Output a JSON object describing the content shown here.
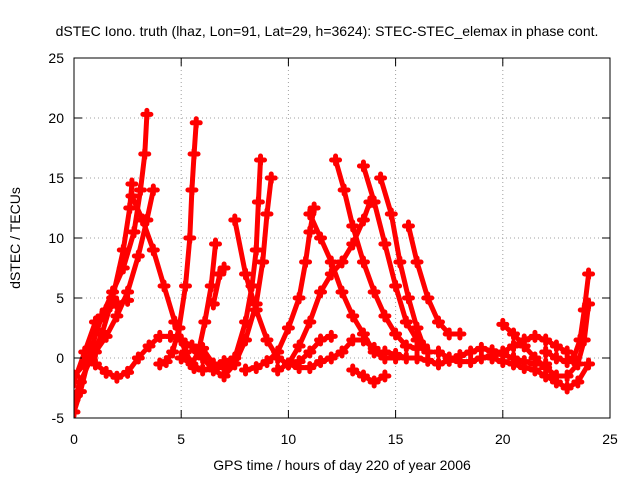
{
  "chart_data": {
    "type": "scatter",
    "title": "dSTEC Iono. truth (lhaz, Lon=91, Lat=29, h=3624): STEC-STEC_elemax in phase cont.",
    "xlabel": "GPS time / hours of day 220 of year 2006",
    "ylabel": "dSTEC  / TECUs",
    "xlim": [
      0,
      25
    ],
    "ylim": [
      -5,
      25
    ],
    "xticks": [
      0,
      5,
      10,
      15,
      20,
      25
    ],
    "yticks": [
      -5,
      0,
      5,
      10,
      15,
      20,
      25
    ],
    "grid": true,
    "marker": "+",
    "color": "#ff0000",
    "series": [
      {
        "points": [
          [
            0.0,
            -3.5
          ],
          [
            0.3,
            -2.0
          ],
          [
            0.8,
            0.0
          ],
          [
            1.3,
            2.0
          ],
          [
            1.8,
            5.0
          ],
          [
            2.3,
            9.0
          ],
          [
            2.6,
            12.5
          ],
          [
            2.7,
            14.5
          ]
        ]
      },
      {
        "points": [
          [
            0.0,
            -4.5
          ],
          [
            0.3,
            -2.8
          ],
          [
            0.8,
            0.8
          ],
          [
            1.3,
            3.5
          ],
          [
            1.8,
            5.5
          ],
          [
            2.3,
            7.5
          ],
          [
            2.8,
            10.5
          ],
          [
            3.1,
            14.0
          ],
          [
            3.3,
            17.0
          ],
          [
            3.4,
            20.3
          ]
        ]
      },
      {
        "points": [
          [
            0.0,
            -1.5
          ],
          [
            0.5,
            -0.5
          ],
          [
            1.0,
            0.5
          ],
          [
            1.5,
            1.8
          ],
          [
            2.0,
            3.5
          ],
          [
            2.5,
            5.5
          ],
          [
            3.0,
            8.5
          ],
          [
            3.4,
            11.5
          ],
          [
            3.7,
            14.0
          ]
        ]
      },
      {
        "points": [
          [
            0.0,
            -2.0
          ],
          [
            0.5,
            0.5
          ],
          [
            1.0,
            3.0
          ],
          [
            1.5,
            4.0
          ],
          [
            2.0,
            4.5
          ],
          [
            2.5,
            4.8
          ]
        ]
      },
      {
        "points": [
          [
            2.7,
            13.5
          ],
          [
            3.2,
            11.5
          ],
          [
            3.7,
            9.0
          ],
          [
            4.2,
            6.0
          ],
          [
            4.7,
            3.0
          ],
          [
            5.2,
            0.5
          ],
          [
            5.6,
            -0.8
          ],
          [
            6.0,
            -1.0
          ],
          [
            6.5,
            -0.8
          ],
          [
            7.0,
            -0.3
          ],
          [
            7.5,
            0.0
          ]
        ]
      },
      {
        "points": [
          [
            1.0,
            -0.5
          ],
          [
            1.5,
            -1.2
          ],
          [
            2.0,
            -1.6
          ],
          [
            2.5,
            -1.2
          ],
          [
            3.0,
            0.0
          ],
          [
            3.5,
            1.0
          ],
          [
            4.0,
            1.8
          ],
          [
            4.5,
            1.8
          ],
          [
            5.0,
            1.5
          ]
        ]
      },
      {
        "points": [
          [
            4.0,
            -0.5
          ],
          [
            4.3,
            -0.3
          ],
          [
            4.6,
            0.5
          ],
          [
            4.9,
            2.5
          ],
          [
            5.2,
            6.0
          ],
          [
            5.4,
            10.0
          ],
          [
            5.5,
            14.0
          ],
          [
            5.6,
            17.0
          ],
          [
            5.7,
            19.6
          ]
        ]
      },
      {
        "points": [
          [
            5.0,
            0.0
          ],
          [
            5.5,
            -0.5
          ],
          [
            5.8,
            0.5
          ],
          [
            6.1,
            3.0
          ],
          [
            6.4,
            6.0
          ],
          [
            6.6,
            9.5
          ]
        ]
      },
      {
        "points": [
          [
            5.0,
            1.5
          ],
          [
            5.5,
            1.0
          ],
          [
            6.0,
            0.0
          ],
          [
            6.5,
            -1.0
          ],
          [
            7.0,
            -1.5
          ],
          [
            7.5,
            -0.5
          ],
          [
            8.0,
            1.5
          ],
          [
            8.5,
            4.5
          ],
          [
            8.8,
            8.0
          ],
          [
            9.0,
            12.0
          ],
          [
            9.2,
            15.0
          ]
        ]
      },
      {
        "points": [
          [
            6.0,
            0.8
          ],
          [
            6.5,
            -0.5
          ],
          [
            7.0,
            -0.8
          ],
          [
            7.5,
            0.0
          ],
          [
            8.0,
            3.0
          ],
          [
            8.3,
            6.0
          ],
          [
            8.5,
            9.0
          ],
          [
            8.6,
            13.0
          ],
          [
            8.7,
            16.5
          ]
        ]
      },
      {
        "points": [
          [
            6.5,
            4.5
          ],
          [
            6.8,
            7.0
          ],
          [
            7.0,
            7.5
          ]
        ]
      },
      {
        "points": [
          [
            7.5,
            11.5
          ],
          [
            8.0,
            7.0
          ],
          [
            8.5,
            4.0
          ],
          [
            9.0,
            1.5
          ],
          [
            9.5,
            0.0
          ],
          [
            10.0,
            -0.5
          ],
          [
            10.5,
            -0.3
          ],
          [
            11.0,
            0.5
          ],
          [
            11.5,
            1.5
          ],
          [
            12.0,
            1.8
          ]
        ]
      },
      {
        "points": [
          [
            8.0,
            -1.0
          ],
          [
            8.5,
            -0.8
          ],
          [
            9.0,
            -0.3
          ],
          [
            9.5,
            0.5
          ],
          [
            10.0,
            2.5
          ],
          [
            10.5,
            5.0
          ],
          [
            10.8,
            8.0
          ],
          [
            11.0,
            10.5
          ],
          [
            11.2,
            12.5
          ]
        ]
      },
      {
        "points": [
          [
            10.0,
            -0.5
          ],
          [
            10.5,
            -0.8
          ],
          [
            11.0,
            -0.8
          ],
          [
            11.5,
            -0.3
          ],
          [
            12.0,
            0.0
          ],
          [
            12.5,
            0.5
          ],
          [
            13.0,
            1.5
          ],
          [
            13.5,
            1.5
          ],
          [
            14.0,
            0.8
          ]
        ]
      },
      {
        "points": [
          [
            9.5,
            -1.0
          ],
          [
            10.0,
            -0.5
          ],
          [
            10.5,
            1.0
          ],
          [
            11.0,
            3.0
          ],
          [
            11.5,
            5.5
          ],
          [
            12.0,
            7.0
          ],
          [
            12.5,
            8.0
          ],
          [
            13.0,
            9.5
          ],
          [
            13.5,
            11.5
          ],
          [
            13.8,
            13.0
          ]
        ]
      },
      {
        "points": [
          [
            11.0,
            12.0
          ],
          [
            11.5,
            10.0
          ],
          [
            12.0,
            8.0
          ],
          [
            12.5,
            5.5
          ],
          [
            13.0,
            3.5
          ],
          [
            13.5,
            2.0
          ],
          [
            14.0,
            0.5
          ],
          [
            14.5,
            0.0
          ],
          [
            15.0,
            0.0
          ]
        ]
      },
      {
        "points": [
          [
            12.2,
            16.5
          ],
          [
            12.6,
            14.0
          ],
          [
            13.0,
            11.0
          ],
          [
            13.5,
            8.0
          ],
          [
            14.0,
            5.5
          ],
          [
            14.5,
            3.5
          ],
          [
            15.0,
            2.0
          ],
          [
            15.5,
            1.0
          ],
          [
            16.0,
            0.8
          ]
        ]
      },
      {
        "points": [
          [
            13.5,
            16.0
          ],
          [
            14.0,
            13.0
          ],
          [
            14.5,
            9.5
          ],
          [
            15.0,
            6.0
          ],
          [
            15.5,
            3.0
          ],
          [
            16.0,
            1.5
          ],
          [
            16.5,
            0.5
          ]
        ]
      },
      {
        "points": [
          [
            14.3,
            15.0
          ],
          [
            14.8,
            12.0
          ],
          [
            15.2,
            8.0
          ],
          [
            15.6,
            5.0
          ],
          [
            16.0,
            2.5
          ],
          [
            16.3,
            1.0
          ]
        ]
      },
      {
        "points": [
          [
            15.6,
            11.0
          ],
          [
            16.0,
            8.0
          ],
          [
            16.5,
            5.0
          ],
          [
            17.0,
            3.0
          ],
          [
            17.5,
            2.0
          ],
          [
            18.0,
            2.0
          ]
        ]
      },
      {
        "points": [
          [
            13.0,
            -1.0
          ],
          [
            13.5,
            -1.5
          ],
          [
            14.0,
            -2.0
          ],
          [
            14.5,
            -1.5
          ]
        ]
      },
      {
        "points": [
          [
            14.5,
            0.5
          ],
          [
            15.0,
            0.3
          ],
          [
            15.5,
            0.0
          ],
          [
            16.0,
            0.0
          ],
          [
            16.5,
            -0.2
          ],
          [
            17.0,
            -0.5
          ],
          [
            17.5,
            -0.2
          ],
          [
            18.0,
            0.2
          ],
          [
            18.5,
            0.5
          ],
          [
            19.0,
            0.8
          ],
          [
            19.5,
            0.6
          ],
          [
            20.0,
            0.3
          ],
          [
            20.5,
            0.0
          ],
          [
            21.0,
            -0.3
          ],
          [
            21.5,
            -0.5
          ],
          [
            22.0,
            -0.5
          ]
        ]
      },
      {
        "points": [
          [
            17.0,
            0.5
          ],
          [
            17.5,
            0.0
          ],
          [
            18.0,
            -0.3
          ],
          [
            18.5,
            -0.3
          ],
          [
            19.0,
            0.0
          ],
          [
            19.5,
            0.2
          ],
          [
            20.0,
            0.5
          ],
          [
            20.5,
            1.0
          ],
          [
            21.0,
            1.5
          ],
          [
            21.5,
            1.8
          ],
          [
            22.0,
            1.5
          ],
          [
            22.5,
            1.0
          ],
          [
            23.0,
            0.5
          ]
        ]
      },
      {
        "points": [
          [
            19.5,
            0.0
          ],
          [
            20.0,
            -0.3
          ],
          [
            20.5,
            -0.5
          ],
          [
            21.0,
            -0.8
          ],
          [
            21.5,
            -1.0
          ],
          [
            22.0,
            -1.5
          ],
          [
            22.5,
            -2.0
          ],
          [
            23.0,
            -2.5
          ],
          [
            23.5,
            -2.0
          ],
          [
            24.0,
            -0.5
          ]
        ]
      },
      {
        "points": [
          [
            20.0,
            2.8
          ],
          [
            20.5,
            2.0
          ],
          [
            21.0,
            1.0
          ],
          [
            21.5,
            0.0
          ],
          [
            22.0,
            -0.8
          ],
          [
            22.5,
            -1.5
          ],
          [
            23.0,
            -1.5
          ],
          [
            23.5,
            -0.5
          ],
          [
            23.8,
            1.5
          ],
          [
            24.0,
            4.5
          ]
        ]
      },
      {
        "points": [
          [
            22.0,
            0.5
          ],
          [
            22.5,
            0.0
          ],
          [
            23.0,
            -0.3
          ],
          [
            23.3,
            0.0
          ],
          [
            23.6,
            1.5
          ],
          [
            23.8,
            4.0
          ],
          [
            24.0,
            7.0
          ]
        ]
      }
    ]
  }
}
